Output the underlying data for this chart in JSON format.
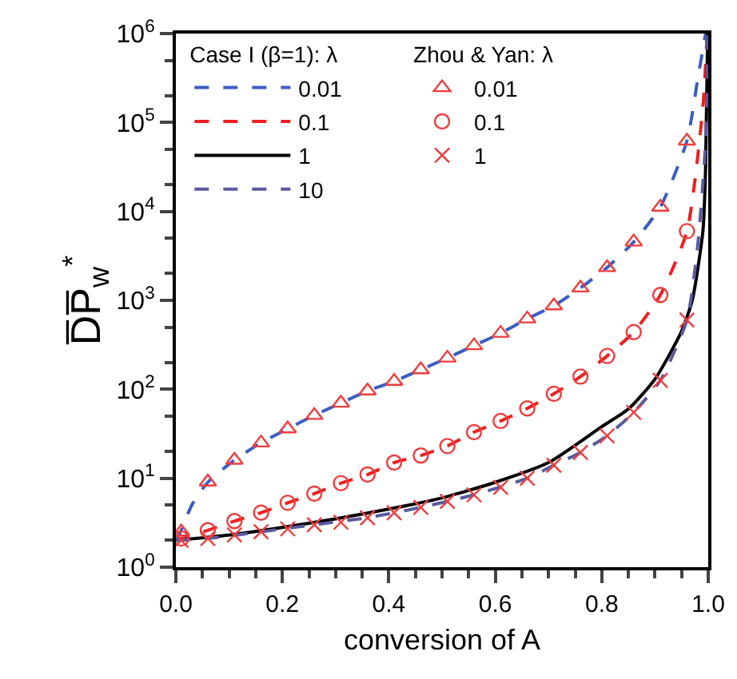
{
  "chart_data": {
    "type": "line",
    "xlabel": "conversion of A",
    "ylabel": "D̅P̅$_{w}$$^{*}$",
    "legend_title": "Case I (β=1): λ",
    "annotations": [
      "Zhou & Yan: λ"
    ],
    "xlim": [
      0,
      1
    ],
    "xticks": [
      {
        "value": 0,
        "label": "0.0"
      },
      0.2,
      0.4,
      0.6,
      0.8,
      {
        "value": 1,
        "label": "1.0"
      }
    ],
    "ylim": [
      1,
      1000000
    ],
    "yticks": [
      {
        "value": 1,
        "label": "10$^{0}$"
      },
      {
        "value": 10,
        "label": "10$^{1}$"
      },
      {
        "value": 100,
        "label": "10$^{2}$"
      },
      {
        "value": 1000,
        "label": "10$^{3}$"
      },
      {
        "value": 10000,
        "label": "10$^{4}$"
      },
      {
        "value": 100000,
        "label": "10$^{5}$"
      },
      {
        "value": 1000000,
        "label": "10$^{6}$"
      }
    ],
    "log": "y",
    "grid": false,
    "legend": "top left",
    "series": [
      {
        "name": "0.01",
        "color": "#3b5cc4",
        "line_style": "dashed",
        "x": [
          0,
          0.01,
          0.03,
          0.06,
          0.11,
          0.16,
          0.21,
          0.26,
          0.31,
          0.36,
          0.41,
          0.46,
          0.51,
          0.56,
          0.61,
          0.66,
          0.71,
          0.76,
          0.81,
          0.86,
          0.91,
          0.96,
          0.98,
          0.995
        ],
        "values": [
          2,
          2.6,
          5,
          9,
          16,
          25,
          36,
          51,
          70,
          96,
          123,
          166,
          225,
          310,
          427,
          620,
          870,
          1380,
          2340,
          4540,
          11200,
          62000,
          300000,
          1000000
        ]
      },
      {
        "name": "0.1",
        "color": "#ee2020",
        "line_style": "dashed",
        "x": [
          0,
          0.01,
          0.06,
          0.11,
          0.16,
          0.21,
          0.26,
          0.31,
          0.36,
          0.41,
          0.46,
          0.51,
          0.56,
          0.61,
          0.66,
          0.71,
          0.76,
          0.81,
          0.86,
          0.91,
          0.96,
          0.99,
          0.998
        ],
        "values": [
          2,
          2.1,
          2.6,
          3.3,
          4.1,
          5.3,
          6.7,
          8.8,
          11,
          15,
          18,
          23,
          33,
          44,
          61,
          89,
          139,
          237,
          440,
          1150,
          6000,
          150000,
          1000000
        ]
      },
      {
        "name": "1",
        "color": "#000000",
        "line_style": "solid",
        "x": [
          0,
          0.1,
          0.2,
          0.3,
          0.4,
          0.5,
          0.6,
          0.7,
          0.8,
          0.85,
          0.9,
          0.95,
          0.97,
          0.99,
          0.995,
          0.999
        ],
        "values": [
          2,
          2.3,
          2.8,
          3.5,
          4.5,
          6,
          9,
          15,
          38,
          60,
          130,
          450,
          1000,
          6000,
          30000,
          1000000
        ]
      },
      {
        "name": "10",
        "color": "#5a5a9e",
        "line_style": "dashed",
        "x": [
          0,
          0.06,
          0.16,
          0.26,
          0.36,
          0.46,
          0.56,
          0.66,
          0.71,
          0.76,
          0.81,
          0.86,
          0.91,
          0.96,
          0.98,
          0.995,
          0.999
        ],
        "values": [
          2,
          2.1,
          2.5,
          3,
          3.6,
          4.7,
          6.5,
          10,
          14,
          19.5,
          30,
          55,
          126,
          600,
          4000,
          60000,
          1000000
        ]
      },
      {
        "type": "scatter",
        "name": "0.01",
        "color": "#f03c3c",
        "marker": "triangle",
        "x": [
          0.01,
          0.06,
          0.11,
          0.16,
          0.21,
          0.26,
          0.31,
          0.36,
          0.41,
          0.46,
          0.51,
          0.56,
          0.61,
          0.66,
          0.71,
          0.76,
          0.81,
          0.86,
          0.91,
          0.96
        ],
        "values": [
          2.5,
          9.1,
          16,
          25,
          36,
          51,
          70,
          96,
          123,
          166,
          225,
          310,
          427,
          620,
          870,
          1380,
          2340,
          4540,
          11200,
          62000
        ]
      },
      {
        "type": "scatter",
        "name": "0.1",
        "color": "#f03c3c",
        "marker": "circle",
        "x": [
          0.01,
          0.06,
          0.11,
          0.16,
          0.21,
          0.26,
          0.31,
          0.36,
          0.41,
          0.46,
          0.51,
          0.56,
          0.61,
          0.66,
          0.71,
          0.76,
          0.81,
          0.86,
          0.91,
          0.96
        ],
        "values": [
          2.1,
          2.6,
          3.3,
          4.1,
          5.3,
          6.7,
          8.8,
          11,
          15,
          18,
          23,
          33,
          44,
          61,
          89,
          139,
          237,
          440,
          1150,
          6000
        ]
      },
      {
        "type": "scatter",
        "name": "1",
        "color": "#f03c3c",
        "marker": "cross",
        "x": [
          0.01,
          0.06,
          0.11,
          0.16,
          0.21,
          0.26,
          0.31,
          0.36,
          0.41,
          0.46,
          0.51,
          0.56,
          0.61,
          0.66,
          0.71,
          0.76,
          0.81,
          0.86,
          0.91,
          0.96
        ],
        "values": [
          2,
          2.1,
          2.3,
          2.5,
          2.7,
          3,
          3.2,
          3.6,
          4.1,
          4.7,
          5.5,
          6.5,
          7.9,
          10,
          14,
          19.5,
          30,
          55,
          126,
          600
        ]
      }
    ]
  }
}
